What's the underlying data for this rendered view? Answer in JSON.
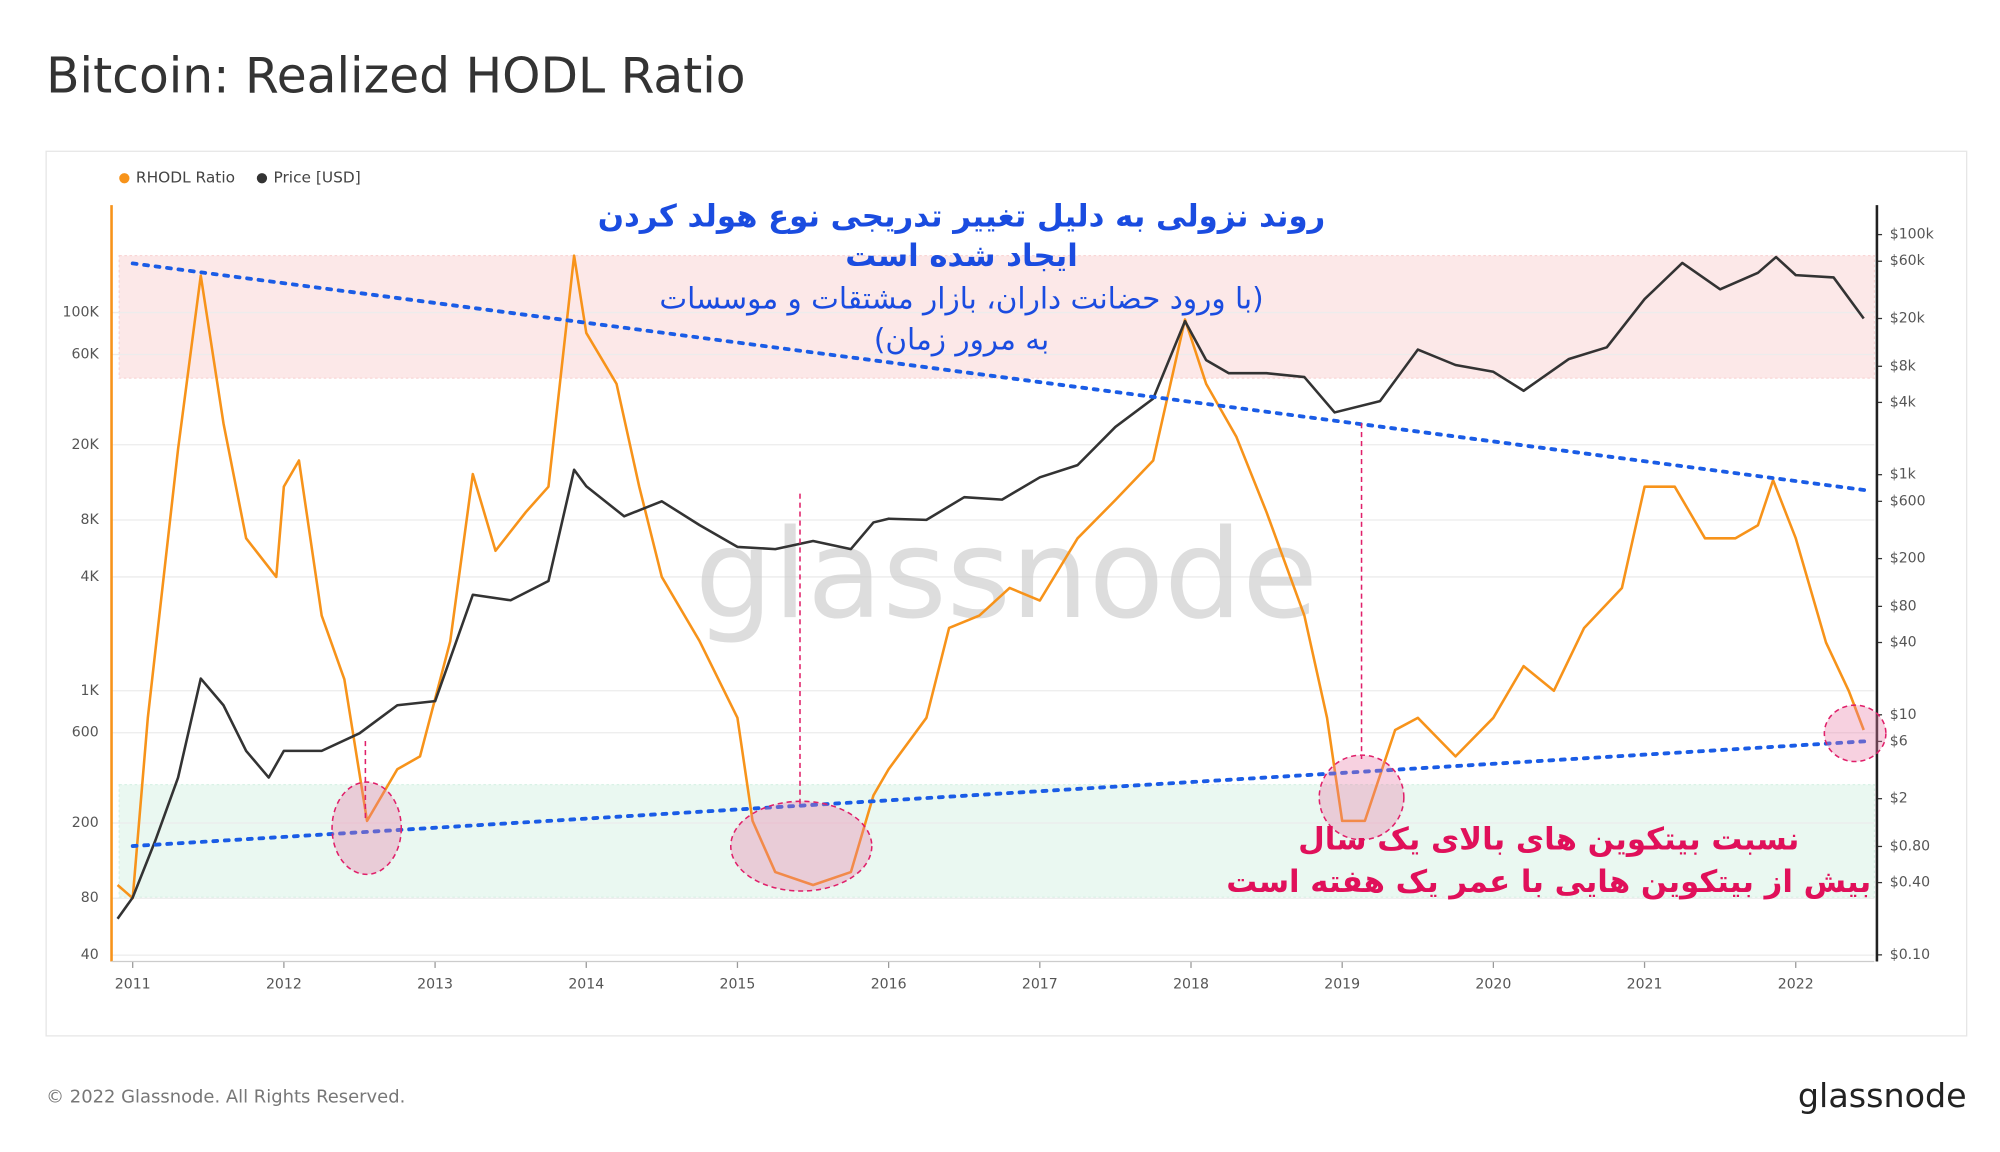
{
  "chart_data": {
    "type": "line",
    "title": "Bitcoin: Realized HODL Ratio",
    "watermark": "glassnode",
    "annotations": [
      "روند نزولی به دلیل تغییر تدریجی نوع هولد کردن",
      "ایجاد شده است",
      "(با ورود حضانت داران، بازار مشتقات و موسسات",
      "به مرور زمان)",
      "نسبت بیتکوین های بالای یک سال",
      "بیش از بیتکوین هایی با عمر یک هفته است"
    ],
    "xlim": [
      2010.86,
      2022.52
    ],
    "xticks": [
      2011,
      2012,
      2013,
      2014,
      2015,
      2016,
      2017,
      2018,
      2019,
      2020,
      2021,
      2022
    ],
    "log_scale": true,
    "grid": true,
    "legend": "top-left",
    "ylim": [
      37,
      370000
    ],
    "yticks": [
      40,
      80,
      200,
      600,
      {
        "value": 1000,
        "label": "1K"
      },
      {
        "value": 4000,
        "label": "4K"
      },
      {
        "value": 8000,
        "label": "8K"
      },
      {
        "value": 20000,
        "label": "20K"
      },
      {
        "value": 60000,
        "label": "60K"
      },
      {
        "value": 100000,
        "label": "100K"
      }
    ],
    "y2lim": [
      0.088,
      176000
    ],
    "y2ticks": [
      {
        "value": 0.1,
        "label": "$0.10"
      },
      {
        "value": 0.4,
        "label": "$0.40"
      },
      {
        "value": 0.8,
        "label": "$0.80"
      },
      {
        "value": 2,
        "label": "$2"
      },
      {
        "value": 6,
        "label": "$6"
      },
      {
        "value": 10,
        "label": "$10"
      },
      {
        "value": 40,
        "label": "$40"
      },
      {
        "value": 80,
        "label": "$80"
      },
      {
        "value": 200,
        "label": "$200"
      },
      {
        "value": 600,
        "label": "$600"
      },
      {
        "value": 1000,
        "label": "$1k"
      },
      {
        "value": 4000,
        "label": "$4k"
      },
      {
        "value": 8000,
        "label": "$8k"
      },
      {
        "value": 20000,
        "label": "$20k"
      },
      {
        "value": 60000,
        "label": "$60k"
      },
      {
        "value": 100000,
        "label": "$100k"
      }
    ],
    "bands": [
      {
        "range": [
          45000,
          200000
        ],
        "color": "#f9d6d6"
      },
      {
        "range": [
          81,
          319
        ],
        "color": "#d9f2e6"
      }
    ],
    "trendlines": [
      {
        "x": [
          2011,
          2022.5
        ],
        "values": [
          182000,
          11400
        ],
        "color": "#1a5ce6"
      },
      {
        "x": [
          2011,
          2022.5
        ],
        "values": [
          151,
          543
        ],
        "color": "#1a5ce6"
      }
    ],
    "series": [
      {
        "name": "RHODL Ratio",
        "color": "#f7931a",
        "x": [
          2010.9,
          2011.0,
          2011.1,
          2011.3,
          2011.45,
          2011.6,
          2011.75,
          2011.95,
          2012.0,
          2012.1,
          2012.25,
          2012.4,
          2012.55,
          2012.75,
          2012.9,
          2013.1,
          2013.25,
          2013.4,
          2013.6,
          2013.75,
          2013.92,
          2014.0,
          2014.2,
          2014.35,
          2014.5,
          2014.75,
          2015.0,
          2015.1,
          2015.25,
          2015.5,
          2015.75,
          2015.9,
          2016.0,
          2016.25,
          2016.4,
          2016.6,
          2016.8,
          2017.0,
          2017.25,
          2017.5,
          2017.75,
          2017.96,
          2018.1,
          2018.3,
          2018.5,
          2018.75,
          2018.9,
          2019.0,
          2019.15,
          2019.35,
          2019.5,
          2019.75,
          2020.0,
          2020.2,
          2020.4,
          2020.6,
          2020.85,
          2021.0,
          2021.2,
          2021.4,
          2021.6,
          2021.75,
          2021.85,
          2022.0,
          2022.2,
          2022.35,
          2022.45
        ],
        "values": [
          94,
          80,
          720,
          19000,
          157000,
          26000,
          6400,
          4000,
          12000,
          16500,
          2500,
          1150,
          205,
          385,
          450,
          1830,
          14000,
          5500,
          8800,
          12000,
          200000,
          78000,
          42000,
          12000,
          4000,
          1830,
          720,
          205,
          110,
          94,
          110,
          280,
          385,
          720,
          2150,
          2500,
          3500,
          3000,
          6400,
          10200,
          16500,
          92000,
          42000,
          22000,
          8800,
          2500,
          720,
          205,
          205,
          620,
          720,
          450,
          720,
          1350,
          1000,
          2150,
          3500,
          12000,
          12000,
          6400,
          6400,
          7500,
          13000,
          6400,
          1800,
          1000,
          620
        ]
      },
      {
        "name": "Price [USD]",
        "color": "#333333",
        "axis": "y2",
        "x": [
          2010.9,
          2011.0,
          2011.15,
          2011.3,
          2011.45,
          2011.6,
          2011.75,
          2011.9,
          2012.0,
          2012.25,
          2012.5,
          2012.75,
          2013.0,
          2013.25,
          2013.5,
          2013.75,
          2013.92,
          2014.0,
          2014.25,
          2014.5,
          2014.75,
          2015.0,
          2015.25,
          2015.5,
          2015.75,
          2015.9,
          2016.0,
          2016.25,
          2016.5,
          2016.75,
          2017.0,
          2017.25,
          2017.5,
          2017.75,
          2017.96,
          2018.1,
          2018.25,
          2018.5,
          2018.75,
          2018.95,
          2019.25,
          2019.5,
          2019.75,
          2020.0,
          2020.2,
          2020.5,
          2020.75,
          2021.0,
          2021.25,
          2021.5,
          2021.75,
          2021.87,
          2022.0,
          2022.25,
          2022.45
        ],
        "values": [
          0.2,
          0.3,
          0.9,
          3,
          20,
          12,
          5,
          3,
          5,
          5,
          7,
          12,
          13,
          100,
          90,
          130,
          1100,
          800,
          450,
          600,
          380,
          250,
          240,
          280,
          240,
          400,
          430,
          420,
          650,
          620,
          950,
          1200,
          2500,
          4300,
          19000,
          9000,
          7000,
          7000,
          6500,
          3300,
          4100,
          11000,
          8200,
          7200,
          5000,
          9200,
          11500,
          29000,
          58000,
          35000,
          48000,
          65000,
          46000,
          44000,
          20000
        ]
      }
    ]
  },
  "footer": {
    "copyright": "© 2022 Glassnode. All Rights Reserved.",
    "logo": "glassnode"
  }
}
